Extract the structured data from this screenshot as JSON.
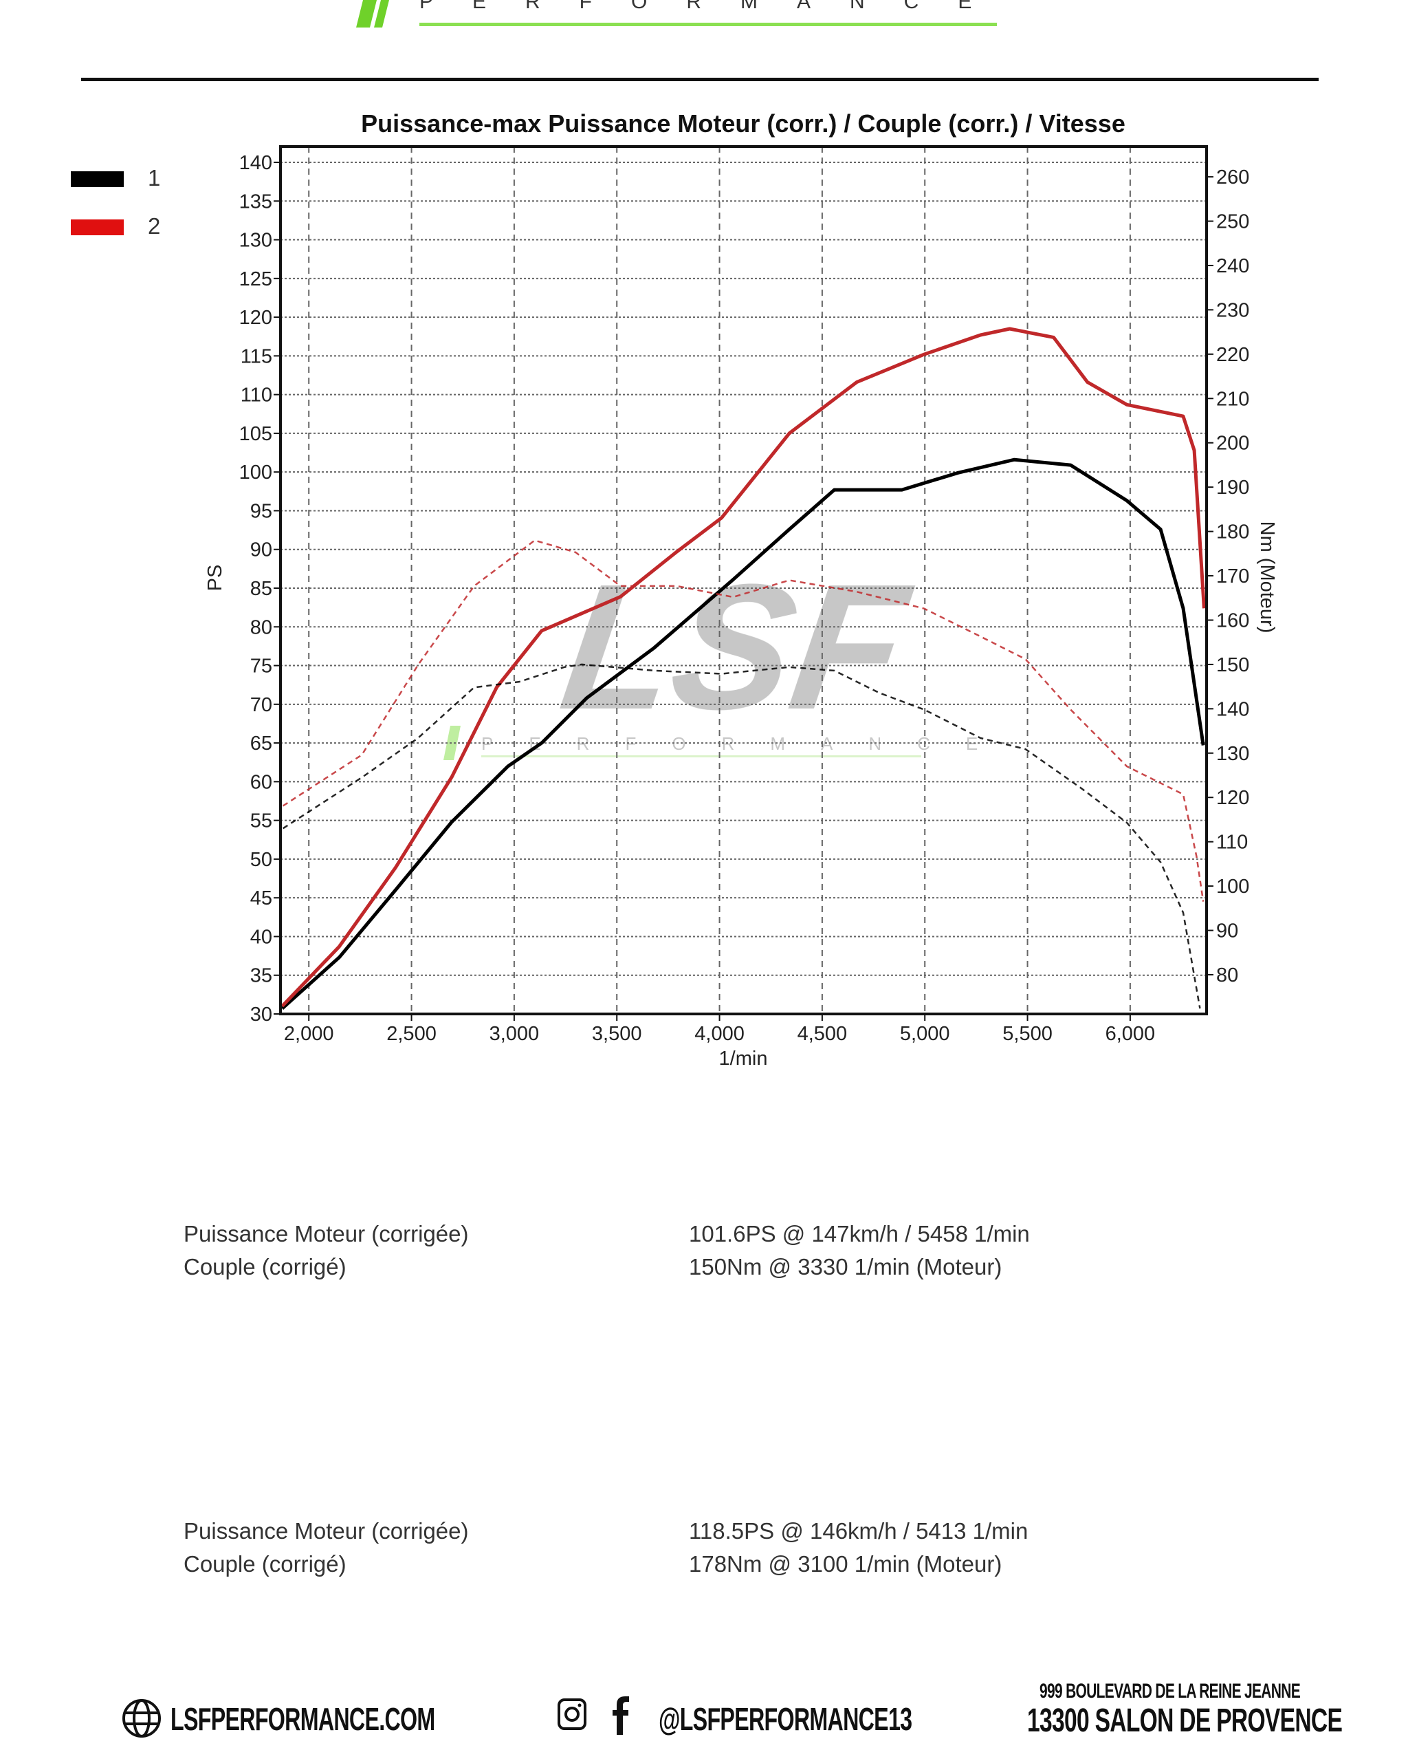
{
  "header": {
    "logo_text": "PERFORMANCE",
    "brand_color": "#6fd12a"
  },
  "legend": [
    {
      "label": "1",
      "color": "#000000"
    },
    {
      "label": "2",
      "color": "#e01010"
    }
  ],
  "chart_data": {
    "type": "line",
    "title": "Puissance-max Puissance Moteur (corr.) / Couple (corr.) / Vitesse",
    "xlabel": "1/min",
    "ylabel_left": "PS",
    "ylabel_right": "Nm (Moteur)",
    "xlim": [
      1862,
      6372
    ],
    "ylim_left": [
      30,
      140
    ],
    "ylim_right": [
      71,
      263
    ],
    "x_ticks": [
      2000,
      2500,
      3000,
      3500,
      4000,
      4500,
      5000,
      5500,
      6000
    ],
    "x_tick_labels": [
      "2,000",
      "2,500",
      "3,000",
      "3,500",
      "4,000",
      "4,500",
      "5,000",
      "5,500",
      "6,000"
    ],
    "y_left_ticks": [
      30,
      35,
      40,
      45,
      50,
      55,
      60,
      65,
      70,
      75,
      80,
      85,
      90,
      95,
      100,
      105,
      110,
      115,
      120,
      125,
      130,
      135,
      140
    ],
    "y_right_ticks": [
      80,
      90,
      100,
      110,
      120,
      130,
      140,
      150,
      160,
      170,
      180,
      190,
      200,
      210,
      220,
      230,
      240,
      250,
      260
    ],
    "grid": true,
    "legend_placement": "top-left",
    "watermark": "LSF PERFORMANCE",
    "series": [
      {
        "name": "1",
        "quantity": "power",
        "axis": "left",
        "color": "#000000",
        "style": "solid",
        "x": [
          1870,
          2148,
          2422,
          2696,
          2970,
          3134,
          3353,
          3682,
          4066,
          4340,
          4559,
          4888,
          5162,
          5436,
          5710,
          5984,
          6148,
          6258,
          6356
        ],
        "y": [
          30.7,
          37.3,
          46,
          54.8,
          62,
          65,
          70.8,
          77.3,
          86.1,
          92.6,
          97.7,
          97.7,
          99.9,
          101.6,
          100.9,
          96.3,
          92.6,
          82.4,
          64.7
        ]
      },
      {
        "name": "2",
        "quantity": "power",
        "axis": "left",
        "color": "#c0282a",
        "style": "solid",
        "x": [
          1870,
          2148,
          2422,
          2696,
          2915,
          3134,
          3518,
          3792,
          4011,
          4340,
          4668,
          4997,
          5271,
          5413,
          5627,
          5792,
          5984,
          6258,
          6312,
          6360
        ],
        "y": [
          31,
          38.7,
          48.9,
          60.6,
          72.2,
          79.5,
          83.9,
          89.7,
          94.1,
          105,
          111.6,
          115.2,
          117.7,
          118.5,
          117.4,
          111.6,
          108.7,
          107.2,
          102.8,
          82.4
        ]
      },
      {
        "name": "1",
        "quantity": "torque",
        "axis": "right",
        "color": "#000000",
        "style": "dashed",
        "x": [
          1874,
          2258,
          2532,
          2805,
          3025,
          3244,
          3330,
          3682,
          4011,
          4340,
          4559,
          4778,
          4997,
          5271,
          5490,
          5764,
          5984,
          6148,
          6258,
          6340
        ],
        "y": [
          113,
          124.5,
          133.4,
          144.8,
          146.1,
          149.4,
          150,
          148.6,
          147.9,
          149.4,
          148.6,
          143.6,
          139.8,
          133.4,
          130.9,
          122,
          114.3,
          105.4,
          94,
          72.4
        ]
      },
      {
        "name": "2",
        "quantity": "torque",
        "axis": "right",
        "color": "#c0282a",
        "style": "dashed",
        "x": [
          1874,
          2258,
          2532,
          2805,
          3100,
          3299,
          3518,
          3792,
          4066,
          4340,
          4668,
          4997,
          5271,
          5490,
          5710,
          5984,
          6258,
          6323,
          6356
        ],
        "y": [
          118.1,
          129.6,
          149.9,
          167.7,
          178,
          175.3,
          167.7,
          167.7,
          165.2,
          169,
          166.4,
          162.6,
          156.3,
          151.2,
          139.8,
          127,
          120.7,
          106.7,
          96.5
        ]
      }
    ]
  },
  "results": [
    {
      "rows": [
        {
          "label": "Puissance Moteur (corrigée)",
          "value": "101.6PS @ 147km/h / 5458 1/min"
        },
        {
          "label": "Couple (corrigé)",
          "value": "150Nm @ 3330 1/min (Moteur)"
        }
      ]
    },
    {
      "rows": [
        {
          "label": "Puissance Moteur (corrigée)",
          "value": "118.5PS @ 146km/h / 5413 1/min"
        },
        {
          "label": "Couple (corrigé)",
          "value": "178Nm @ 3100 1/min (Moteur)"
        }
      ]
    }
  ],
  "footer": {
    "website": "LSFPERFORMANCE.COM",
    "social_handle": "@LSFPERFORMANCE13",
    "address_line1": "999 BOULEVARD DE LA REINE JEANNE",
    "address_line2": "13300 SALON DE PROVENCE",
    "icons": [
      "globe-icon",
      "instagram-icon",
      "facebook-icon"
    ]
  }
}
